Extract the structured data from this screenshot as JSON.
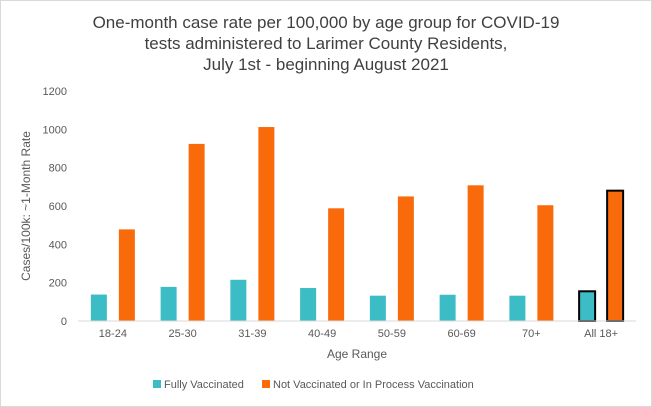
{
  "chart_data": {
    "type": "bar",
    "title_lines": [
      "One-month case rate per 100,000 by age group for COVID-19",
      "tests administered to Larimer County Residents,",
      "July 1st - beginning August 2021"
    ],
    "xlabel": "Age Range",
    "ylabel": "Cases/100k: ~1-Month Rate",
    "ylim": [
      0,
      1200
    ],
    "yticks": [
      0,
      200,
      400,
      600,
      800,
      1000,
      1200
    ],
    "categories": [
      "18-24",
      "25-30",
      "31-39",
      "40-49",
      "50-59",
      "60-69",
      "70+",
      "All 18+"
    ],
    "series": [
      {
        "name": "Fully Vaccinated",
        "color": "#3CBCC4",
        "values": [
          138,
          178,
          215,
          172,
          132,
          137,
          132,
          155
        ]
      },
      {
        "name": "Not Vaccinated or In Process Vaccination",
        "color": "#F96B0A",
        "values": [
          478,
          924,
          1012,
          588,
          650,
          708,
          604,
          680
        ]
      }
    ],
    "highlighted_category": "All 18+",
    "grid": false,
    "legend": "bottom"
  }
}
